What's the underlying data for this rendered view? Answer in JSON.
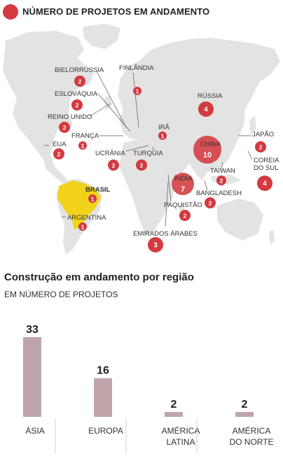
{
  "legend": {
    "label": "NÚMERO DE PROJETOS EM ANDAMENTO",
    "color": "#d33a3f"
  },
  "map": {
    "highlight_color": "#f2d21b",
    "circle_color": "#d33a3f",
    "countries": [
      {
        "name": "BIELORRÚSSIA",
        "count": "2"
      },
      {
        "name": "FINLÂNDIA",
        "count": "1"
      },
      {
        "name": "ESLOVÁQUIA",
        "count": "2"
      },
      {
        "name": "RÚSSIA",
        "count": "4"
      },
      {
        "name": "REINO UNIDO",
        "count": "2"
      },
      {
        "name": "IRÃ",
        "count": "1"
      },
      {
        "name": "JAPÃO",
        "count": "2"
      },
      {
        "name": "FRANÇA",
        "count": "1"
      },
      {
        "name": "EUA",
        "count": "2"
      },
      {
        "name": "CHINA",
        "count": "10"
      },
      {
        "name": "UCRÂNIA",
        "count": "2"
      },
      {
        "name": "TURQUIA",
        "count": "2"
      },
      {
        "name": "COREIA",
        "count": "4",
        "name2": "DO SUL"
      },
      {
        "name": "TAIWAN",
        "count": "2"
      },
      {
        "name": "ÍNDIA",
        "count": "7"
      },
      {
        "name": "BRASIL",
        "count": "1"
      },
      {
        "name": "BANGLADESH",
        "count": "2"
      },
      {
        "name": "PAQUISTÃO",
        "count": "2"
      },
      {
        "name": "ARGENTINA",
        "count": "1"
      },
      {
        "name": "EMIRADOS ÁRABES",
        "count": "3"
      }
    ]
  },
  "chart_title": "Construção em andamento por região",
  "chart_subtitle": "EM NÚMERO DE PROJETOS",
  "chart_data": {
    "type": "bar",
    "title": "Construção em andamento por região",
    "subtitle": "EM NÚMERO DE PROJETOS",
    "categories": [
      [
        "ÁSIA"
      ],
      [
        "EUROPA"
      ],
      [
        "AMÉRICA",
        "LATINA"
      ],
      [
        "AMÉRICA",
        "DO NORTE"
      ]
    ],
    "values": [
      33,
      16,
      2,
      2
    ],
    "ylim": [
      0,
      33
    ],
    "bar_color": "#bfa5aa",
    "grid": false
  }
}
